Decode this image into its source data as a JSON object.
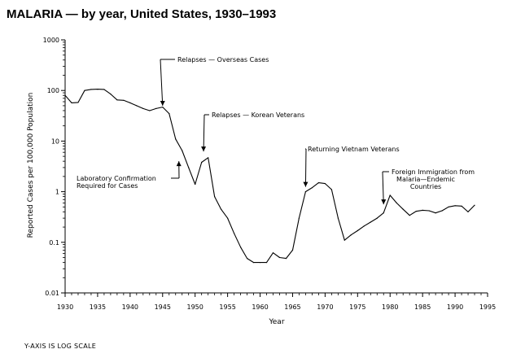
{
  "chart_data": {
    "type": "line",
    "title": "MALARIA — by year, United States, 1930–1993",
    "xlabel": "Year",
    "ylabel": "Reported Cases per 100,000 Population",
    "yscale": "log",
    "xlim": [
      1930,
      1995
    ],
    "ylim": [
      0.01,
      1000
    ],
    "x_ticks": [
      1930,
      1935,
      1940,
      1945,
      1950,
      1955,
      1960,
      1965,
      1970,
      1975,
      1980,
      1985,
      1990,
      1995
    ],
    "y_ticks": [
      {
        "value": 0.01,
        "label": "0.01"
      },
      {
        "value": 0.1,
        "label": "0.1"
      },
      {
        "value": 1,
        "label": "1"
      },
      {
        "value": 10,
        "label": "10"
      },
      {
        "value": 100,
        "label": "100"
      },
      {
        "value": 1000,
        "label": "1000"
      }
    ],
    "footnote": "Y-AXIS IS LOG SCALE",
    "series": [
      {
        "name": "Malaria",
        "x": [
          1930,
          1931,
          1932,
          1933,
          1934,
          1935,
          1936,
          1937,
          1938,
          1939,
          1940,
          1941,
          1942,
          1943,
          1944,
          1945,
          1946,
          1947,
          1948,
          1949,
          1950,
          1951,
          1952,
          1953,
          1954,
          1955,
          1956,
          1957,
          1958,
          1959,
          1960,
          1961,
          1962,
          1963,
          1964,
          1965,
          1966,
          1967,
          1968,
          1969,
          1970,
          1971,
          1972,
          1973,
          1974,
          1975,
          1976,
          1977,
          1978,
          1979,
          1980,
          1981,
          1982,
          1983,
          1984,
          1985,
          1986,
          1987,
          1988,
          1989,
          1990,
          1991,
          1992,
          1993
        ],
        "values": [
          80,
          57,
          58,
          100,
          105,
          106,
          105,
          85,
          65,
          64,
          57,
          50,
          44,
          40,
          44,
          47,
          35,
          11,
          6.5,
          3,
          1.4,
          3.8,
          4.7,
          0.8,
          0.45,
          0.3,
          0.15,
          0.08,
          0.048,
          0.04,
          0.04,
          0.04,
          0.062,
          0.05,
          0.048,
          0.07,
          0.3,
          1.0,
          1.2,
          1.5,
          1.45,
          1.1,
          0.3,
          0.11,
          0.14,
          0.17,
          0.21,
          0.25,
          0.3,
          0.38,
          0.85,
          0.6,
          0.45,
          0.34,
          0.41,
          0.43,
          0.42,
          0.38,
          0.42,
          0.5,
          0.53,
          0.52,
          0.4,
          0.54
        ]
      }
    ],
    "annotations": [
      {
        "lines": [
          "Relapses — Overseas Cases"
        ],
        "x": 1945,
        "y": 40
      },
      {
        "lines": [
          "Relapses — Korean Veterans"
        ],
        "x": 1951.3,
        "y": 5
      },
      {
        "lines": [
          "Laboratory Confirmation",
          "Required for Cases"
        ],
        "x": 1947.5,
        "y": 5
      },
      {
        "lines": [
          "Returning Vietnam Veterans"
        ],
        "x": 1967,
        "y": 1.0
      },
      {
        "lines": [
          "Foreign Immigration from",
          "Malaria—Endemic",
          "Countries"
        ],
        "x": 1979,
        "y": 0.45
      }
    ]
  }
}
